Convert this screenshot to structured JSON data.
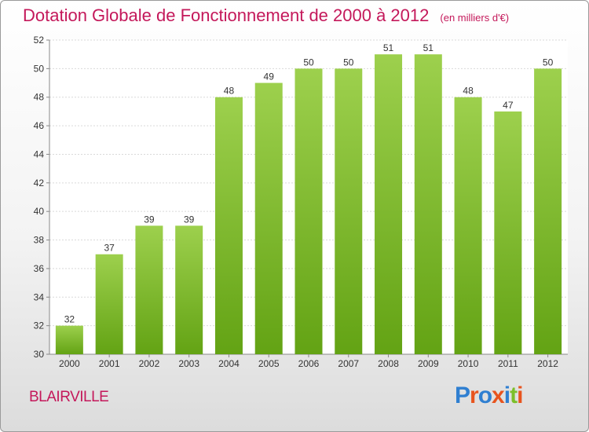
{
  "header": {
    "title": "Dotation Globale de Fonctionnement de 2000 à 2012",
    "unit": "(en milliers d'€)"
  },
  "footer": {
    "place": "BLAIRVILLE",
    "logo": "Proxiti",
    "logo_colors": [
      "#2f7fd1",
      "#e8541e",
      "#2f7fd1",
      "#e8541e",
      "#2f7fd1",
      "#7cbf29",
      "#e8541e"
    ]
  },
  "chart_data": {
    "type": "bar",
    "categories": [
      "2000",
      "2001",
      "2002",
      "2003",
      "2004",
      "2005",
      "2006",
      "2007",
      "2008",
      "2009",
      "2010",
      "2011",
      "2012"
    ],
    "values": [
      32,
      37,
      39,
      39,
      48,
      49,
      50,
      50,
      51,
      51,
      48,
      47,
      50
    ],
    "ylim": [
      30,
      52
    ],
    "yticks": [
      30,
      32,
      34,
      36,
      38,
      40,
      42,
      44,
      46,
      48,
      50,
      52
    ],
    "grid": true,
    "bar_color_top": "#9dd04d",
    "bar_color_bottom": "#63a314"
  }
}
